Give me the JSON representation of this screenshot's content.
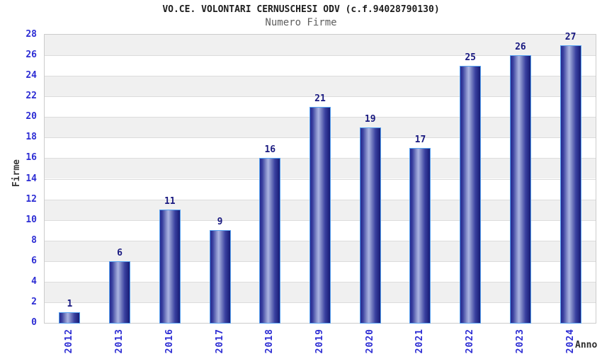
{
  "header": {
    "title": "VO.CE. VOLONTARI CERNUSCHESI ODV (c.f.94028790130)",
    "subtitle": "Numero Firme"
  },
  "chart_data": {
    "type": "bar",
    "title": "VO.CE. VOLONTARI CERNUSCHESI ODV (c.f.94028790130)",
    "subtitle": "Numero Firme",
    "categories": [
      "2012",
      "2013",
      "2016",
      "2017",
      "2018",
      "2019",
      "2020",
      "2021",
      "2022",
      "2023",
      "2024"
    ],
    "values": [
      1,
      6,
      11,
      9,
      16,
      21,
      19,
      17,
      25,
      26,
      27
    ],
    "xlabel": "Anno",
    "ylabel": "Firme",
    "ylim": [
      0,
      28
    ],
    "ytick_step": 2,
    "yticks": [
      0,
      2,
      4,
      6,
      8,
      10,
      12,
      14,
      16,
      18,
      20,
      22,
      24,
      26,
      28
    ],
    "grid": "horizontal-bands",
    "legend": "none",
    "colors": {
      "bar_dark": "#171b74",
      "bar_mid": "#3a41a0",
      "bar_light": "#aab3e2",
      "bar_border": "#55a0f0",
      "tick_label": "#2d2dd4",
      "value_label": "#191980",
      "band_gray": "#f0f0f0",
      "band_white": "#ffffff",
      "grid_line": "#dcdcdc",
      "frame": "#cccccc",
      "title": "#1d1d1d",
      "subtitle": "#5e5e5e"
    }
  }
}
